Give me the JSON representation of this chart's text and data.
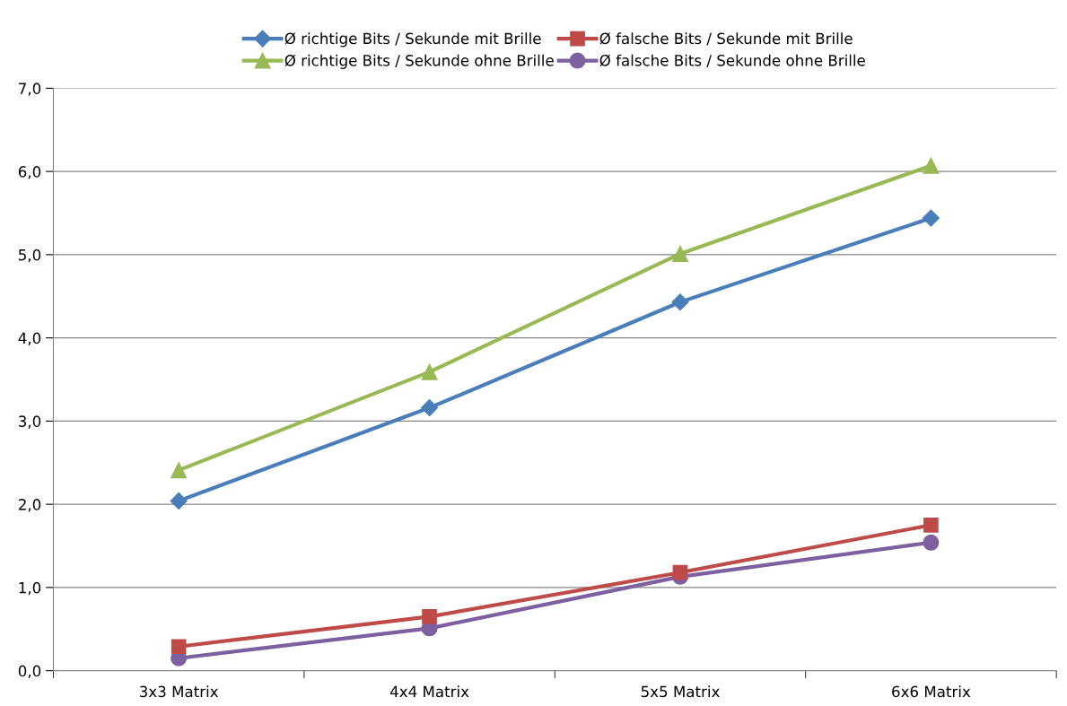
{
  "chart_data": {
    "type": "line",
    "categories": [
      "3x3 Matrix",
      "4x4 Matrix",
      "5x5 Matrix",
      "6x6 Matrix"
    ],
    "series": [
      {
        "name": "Ø richtige Bits / Sekunde mit Brille",
        "color": "#4a7ebb",
        "marker": "diamond",
        "values": [
          2.04,
          3.16,
          4.43,
          5.44
        ]
      },
      {
        "name": "Ø falsche Bits / Sekunde mit Brille",
        "color": "#be4b48",
        "marker": "square",
        "values": [
          0.29,
          0.65,
          1.18,
          1.75
        ]
      },
      {
        "name": "Ø richtige Bits / Sekunde ohne Brille",
        "color": "#98b954",
        "marker": "triangle",
        "values": [
          2.41,
          3.59,
          5.01,
          6.07
        ]
      },
      {
        "name": "Ø falsche Bits / Sekunde ohne Brille",
        "color": "#7d60a0",
        "marker": "circle",
        "values": [
          0.15,
          0.51,
          1.13,
          1.54
        ]
      }
    ],
    "ylim": [
      0,
      7
    ],
    "yticks": [
      {
        "value": 0,
        "label": "0,0"
      },
      {
        "value": 1,
        "label": "1,0"
      },
      {
        "value": 2,
        "label": "2,0"
      },
      {
        "value": 3,
        "label": "3,0"
      },
      {
        "value": 4,
        "label": "4,0"
      },
      {
        "value": 5,
        "label": "5,0"
      },
      {
        "value": 6,
        "label": "6,0"
      },
      {
        "value": 7,
        "label": "7,0"
      }
    ],
    "grid": "y",
    "legend": "top",
    "line_style": "solid"
  }
}
